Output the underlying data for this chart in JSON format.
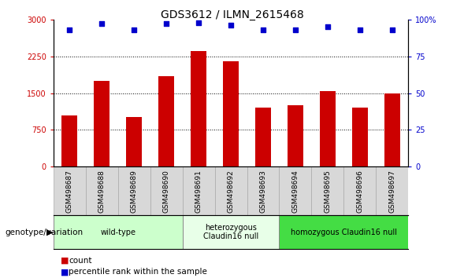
{
  "title": "GDS3612 / ILMN_2615468",
  "samples": [
    "GSM498687",
    "GSM498688",
    "GSM498689",
    "GSM498690",
    "GSM498691",
    "GSM498692",
    "GSM498693",
    "GSM498694",
    "GSM498695",
    "GSM498696",
    "GSM498697"
  ],
  "counts": [
    1050,
    1750,
    1020,
    1850,
    2350,
    2150,
    1200,
    1250,
    1540,
    1200,
    1490
  ],
  "percentile_ranks": [
    93,
    97,
    93,
    97,
    98,
    96,
    93,
    93,
    95,
    93,
    93
  ],
  "bar_color": "#cc0000",
  "dot_color": "#0000cc",
  "ylim_left": [
    0,
    3000
  ],
  "ylim_right": [
    0,
    100
  ],
  "yticks_left": [
    0,
    750,
    1500,
    2250,
    3000
  ],
  "yticks_right": [
    0,
    25,
    50,
    75,
    100
  ],
  "yticklabels_right": [
    "0",
    "25",
    "50",
    "75",
    "100%"
  ],
  "groups": [
    {
      "label": "wild-type",
      "start": 0,
      "end": 3,
      "color": "#ccffcc"
    },
    {
      "label": "heterozygous\nClaudin16 null",
      "start": 4,
      "end": 6,
      "color": "#e8ffe8"
    },
    {
      "label": "homozygous Claudin16 null",
      "start": 7,
      "end": 10,
      "color": "#44dd44"
    }
  ],
  "group_row_label": "genotype/variation",
  "legend_count_color": "#cc0000",
  "legend_pct_color": "#0000cc",
  "background_color": "#ffffff",
  "title_fontsize": 10,
  "tick_fontsize": 7,
  "bar_width": 0.5,
  "sample_cell_color": "#d8d8d8",
  "sample_cell_edge": "#aaaaaa"
}
